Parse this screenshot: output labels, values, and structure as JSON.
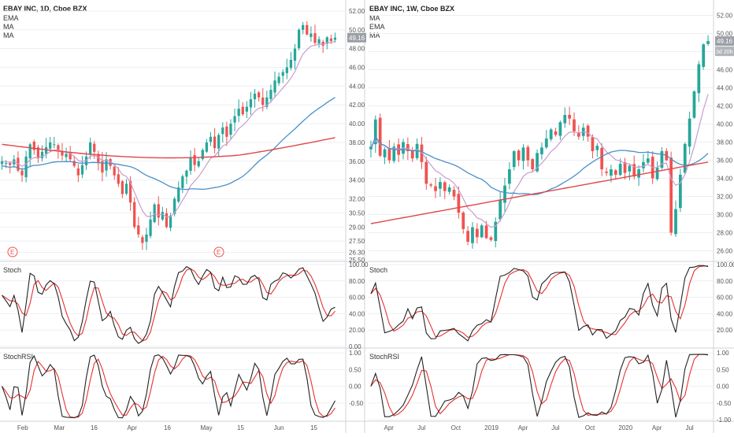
{
  "colors": {
    "up": "#26a69a",
    "down": "#ef5350",
    "ema": "#c89cd0",
    "ma_short": "#4a90c8",
    "ma_long": "#e04848",
    "stoch_k": "#222222",
    "stoch_d": "#e83030",
    "grid": "#eceff3",
    "border": "#cfd3d8",
    "price_tag": "#9aa0a6"
  },
  "panels": [
    {
      "id": "daily",
      "title": "EBAY INC, 1D, Cboe BZX",
      "legend": [
        "EMA",
        "MA",
        "MA"
      ],
      "last_price": "49.16",
      "price_ticks": [
        "52.00",
        "50.00",
        "48.00",
        "46.00",
        "44.00",
        "42.00",
        "40.00",
        "38.00",
        "36.00",
        "34.00",
        "32.00",
        "30.50",
        "29.00",
        "27.50",
        "26.30",
        "25.50"
      ],
      "stoch_label": "Stoch",
      "stoch_ticks": [
        "100.00",
        "80.00",
        "60.00",
        "40.00",
        "20.00",
        "0.00"
      ],
      "rsi_label": "StochRSI",
      "rsi_ticks": [
        "1.00",
        "0.50",
        "0.00",
        "-0.50"
      ],
      "x_labels": [
        "Feb",
        "Mar",
        "16",
        "Apr",
        "16",
        "May",
        "15",
        "Jun",
        "15"
      ],
      "earnings_markers": [
        "E",
        "E"
      ],
      "chart_data": {
        "type": "candlestick",
        "price_range": [
          25.5,
          52.5
        ],
        "closes": [
          36.0,
          35.8,
          35.6,
          36.2,
          35.0,
          34.5,
          36.5,
          37.8,
          37.2,
          36.3,
          37.0,
          37.5,
          38.0,
          37.8,
          37.2,
          36.6,
          36.8,
          36.2,
          35.5,
          34.5,
          35.6,
          36.5,
          38.0,
          37.0,
          35.8,
          34.8,
          36.2,
          35.5,
          34.5,
          33.6,
          32.5,
          33.6,
          31.6,
          29.0,
          28.2,
          27.3,
          28.2,
          29.8,
          31.4,
          30.0,
          30.6,
          29.0,
          30.2,
          32.0,
          33.2,
          34.4,
          35.0,
          36.4,
          35.6,
          36.0,
          37.2,
          38.0,
          38.6,
          37.4,
          38.8,
          39.6,
          38.6,
          40.0,
          40.8,
          41.6,
          41.0,
          41.8,
          42.6,
          43.2,
          42.8,
          42.0,
          42.8,
          43.6,
          44.6,
          45.0,
          45.5,
          46.0,
          46.8,
          48.0,
          50.0,
          50.5,
          49.5,
          49.6,
          48.6,
          49.0,
          48.3,
          49.2,
          48.8,
          49.16
        ],
        "ema_last": 48.0,
        "ma_short_range": [
          33.0,
          42.8
        ],
        "ma_long_range": [
          36.2,
          37.8
        ]
      }
    },
    {
      "id": "weekly",
      "title": "EBAY INC, 1W, Cboe BZX",
      "legend": [
        "MA",
        "EMA",
        "MA"
      ],
      "last_price": "49.16",
      "countdown": "3d 20h",
      "price_ticks": [
        "52.00",
        "50.00",
        "48.00",
        "46.00",
        "44.00",
        "42.00",
        "40.00",
        "38.00",
        "36.00",
        "34.00",
        "32.00",
        "30.00",
        "28.00",
        "26.00"
      ],
      "stoch_label": "Stoch",
      "stoch_ticks": [
        "100.00",
        "80.00",
        "60.00",
        "40.00",
        "20.00"
      ],
      "rsi_label": "StochRSI",
      "rsi_ticks": [
        "1.00",
        "0.50",
        "0.00",
        "-0.50",
        "-1.00"
      ],
      "x_labels": [
        "Apr",
        "Jul",
        "Oct",
        "2019",
        "Apr",
        "Jul",
        "Oct",
        "2020",
        "Apr",
        "Jul"
      ],
      "chart_data": {
        "type": "candlestick",
        "price_range": [
          25.0,
          53.0
        ],
        "closes": [
          37.5,
          40.5,
          36.5,
          37.2,
          36.0,
          37.5,
          36.6,
          38.0,
          37.0,
          36.2,
          37.8,
          35.8,
          33.4,
          33.2,
          32.6,
          33.6,
          32.6,
          33.0,
          32.0,
          30.2,
          28.4,
          27.0,
          28.6,
          27.5,
          28.8,
          27.4,
          27.2,
          29.2,
          31.6,
          33.2,
          35.0,
          37.0,
          36.0,
          37.4,
          36.0,
          35.0,
          36.8,
          37.4,
          38.4,
          39.4,
          38.8,
          40.2,
          41.0,
          40.6,
          39.2,
          38.6,
          39.6,
          38.6,
          37.0,
          37.6,
          35.0,
          34.6,
          35.0,
          34.4,
          35.6,
          34.6,
          35.4,
          34.2,
          35.0,
          35.8,
          36.2,
          34.0,
          35.2,
          37.0,
          36.0,
          28.0,
          30.6,
          34.4,
          37.8,
          40.6,
          43.6,
          46.6,
          48.8,
          49.16
        ],
        "ma_short_range": [
          32.2,
          38.6
        ],
        "ma_long_range": [
          29.0,
          35.8
        ]
      }
    }
  ]
}
